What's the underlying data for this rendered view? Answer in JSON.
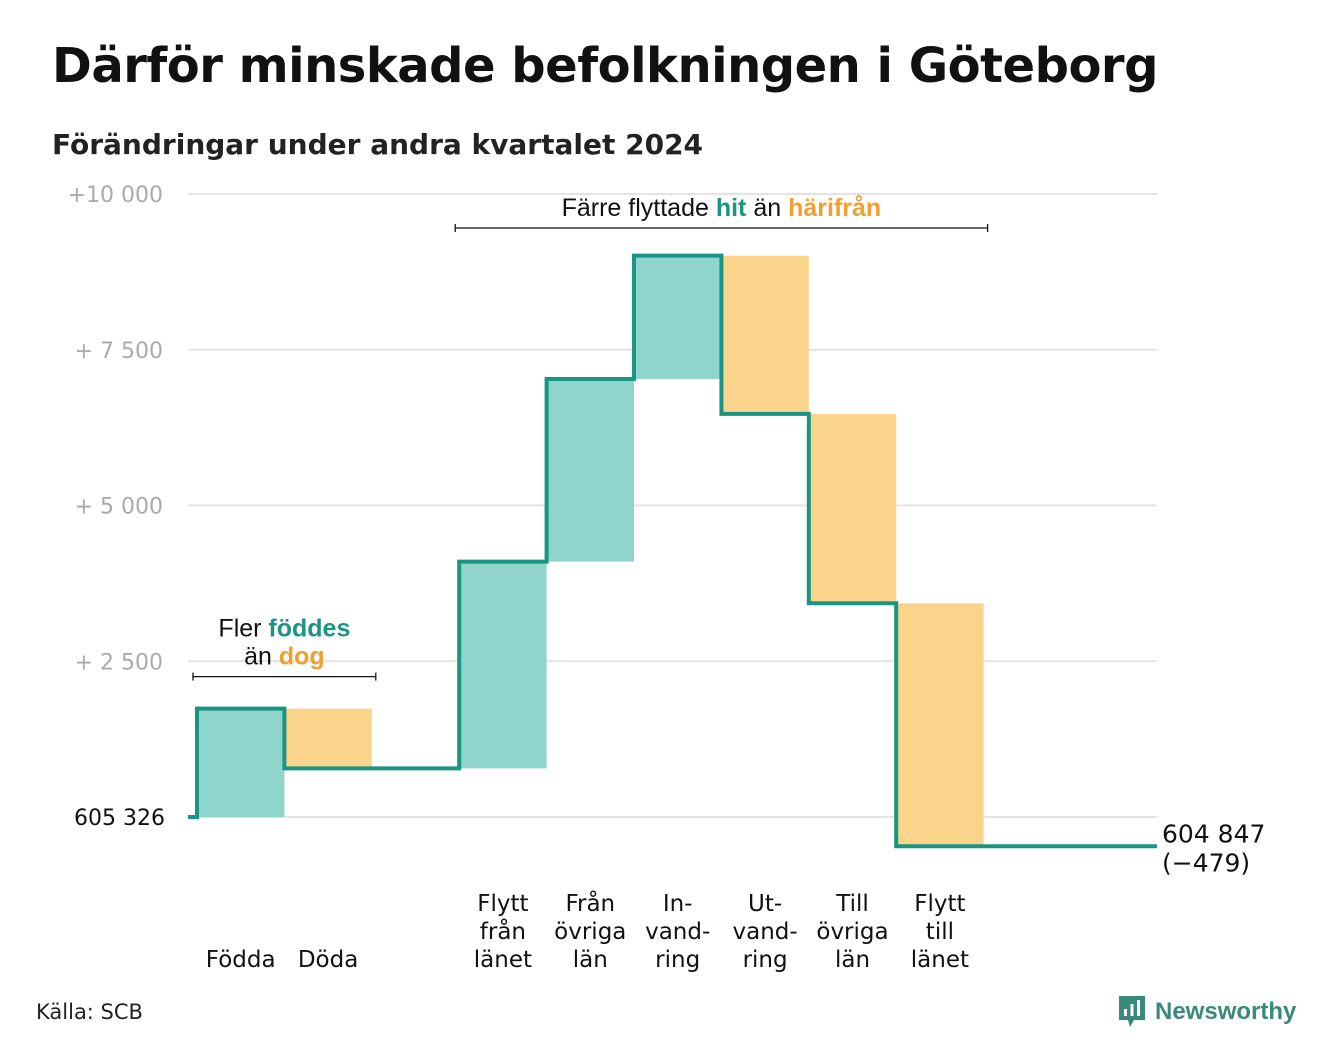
{
  "title": "Därför minskade befolkningen i Göteborg",
  "subtitle": "Förändringar under andra kvartalet 2024",
  "source": "Källa: SCB",
  "brand": {
    "name": "Newsworthy",
    "icon": "newsworthy-logo-icon"
  },
  "colors": {
    "increase_fill": "#8fd5cc",
    "decrease_fill": "#fad48a",
    "line": "#1a9584",
    "teal_text": "#1a9584",
    "orange_text": "#f0a030",
    "grid": "#e3e3e3",
    "tick_text": "#aaaaaa"
  },
  "chart_data": {
    "type": "waterfall",
    "start_label": "605 326",
    "start_value": 605326,
    "end_label": "604 847",
    "end_change_label": "(−479)",
    "y_axis": {
      "ticks": [
        {
          "value": 2500,
          "label": "+ 2 500"
        },
        {
          "value": 5000,
          "label": "+ 5 000"
        },
        {
          "value": 7500,
          "label": "+ 7 500"
        },
        {
          "value": 10000,
          "label": "+10 000"
        }
      ],
      "range": [
        0,
        10000
      ]
    },
    "steps": [
      {
        "label": [
          "Födda"
        ],
        "change": 1740
      },
      {
        "label": [
          "Döda"
        ],
        "change": -960
      },
      {
        "label": [],
        "change": 0
      },
      {
        "label": [
          "Flytt",
          "från",
          "länet"
        ],
        "change": 3320
      },
      {
        "label": [
          "Från",
          "övriga",
          "län"
        ],
        "change": 2930
      },
      {
        "label": [
          "In-",
          "vand-",
          "ring"
        ],
        "change": 1980
      },
      {
        "label": [
          "Ut-",
          "vand-",
          "ring"
        ],
        "change": -2540
      },
      {
        "label": [
          "Till",
          "övriga",
          "län"
        ],
        "change": -3040
      },
      {
        "label": [
          "Flytt",
          "till",
          "länet"
        ],
        "change": -3900
      },
      {
        "label": [],
        "change": 0
      }
    ],
    "annotations": [
      {
        "lines": [
          [
            {
              "text": "Fler ",
              "color": "dark"
            },
            {
              "text": "föddes",
              "color": "teal"
            }
          ],
          [
            {
              "text": "än ",
              "color": "dark"
            },
            {
              "text": "dog",
              "color": "orange"
            }
          ]
        ],
        "span": [
          0,
          1
        ]
      },
      {
        "lines": [
          [
            {
              "text": "Färre flyttade ",
              "color": "dark"
            },
            {
              "text": "hit",
              "color": "teal"
            },
            {
              "text": " än ",
              "color": "dark"
            },
            {
              "text": "härifrån",
              "color": "orange"
            }
          ]
        ],
        "span": [
          3,
          8
        ]
      }
    ]
  }
}
